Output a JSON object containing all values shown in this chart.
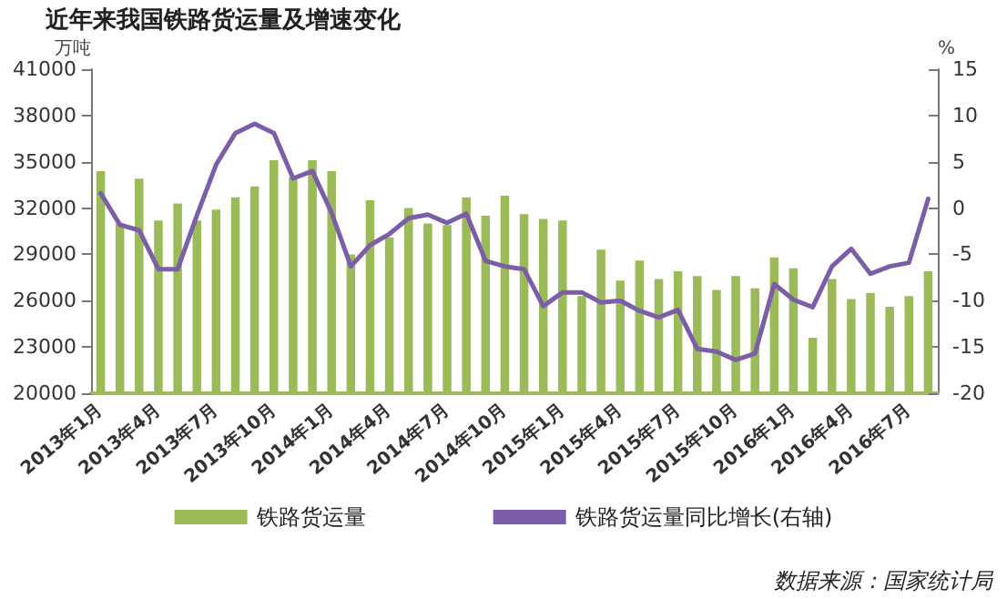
{
  "chart_data": {
    "type": "bar",
    "title": "近年来我国铁路货运量及增速变化",
    "ylabel": "万吨",
    "y2label": "%",
    "categories": [
      "2013年1月",
      null,
      null,
      "2013年4月",
      null,
      null,
      "2013年7月",
      null,
      null,
      "2013年10月",
      null,
      null,
      "2014年1月",
      null,
      null,
      "2014年4月",
      null,
      null,
      "2014年7月",
      null,
      null,
      "2014年10月",
      null,
      null,
      "2015年1月",
      null,
      null,
      "2015年4月",
      null,
      null,
      "2015年7月",
      null,
      null,
      "2015年10月",
      null,
      null,
      "2016年1月",
      null,
      null,
      "2016年4月",
      null,
      null,
      "2016年7月",
      null
    ],
    "series": [
      {
        "name": "铁路货运量",
        "color": "#9bbb59",
        "values": [
          34400,
          31000,
          33900,
          31200,
          32300,
          31200,
          31900,
          32700,
          33400,
          35100,
          34000,
          35100,
          34400,
          29000,
          32500,
          30100,
          32000,
          31000,
          30900,
          32700,
          31500,
          32800,
          31600,
          31300,
          31200,
          26300,
          29300,
          27300,
          28600,
          27400,
          27900,
          27600,
          26700,
          27600,
          26800,
          28800,
          28100,
          23600,
          27400,
          26100,
          26500,
          25600,
          26300,
          27900
        ]
      },
      {
        "name": "铁路货运量同比增长(右轴)",
        "type": "line",
        "axis": "y2",
        "color": "#7b5ea7",
        "values": [
          1.6,
          -1.8,
          -2.4,
          -6.6,
          -6.6,
          -0.8,
          4.7,
          8.1,
          9.1,
          8.1,
          3.2,
          4.0,
          -0.5,
          -6.3,
          -4.0,
          -2.8,
          -1.1,
          -0.7,
          -1.6,
          -0.6,
          -5.7,
          -6.3,
          -6.6,
          -10.6,
          -9.1,
          -9.1,
          -10.2,
          -10.0,
          -11.1,
          -11.8,
          -11.0,
          -15.2,
          -15.5,
          -16.4,
          -15.7,
          -8.2,
          -9.9,
          -10.7,
          -6.3,
          -4.4,
          -7.1,
          -6.3,
          -5.9,
          1.0
        ]
      }
    ],
    "ylim": [
      20000,
      41000
    ],
    "yticks": [
      20000,
      23000,
      26000,
      29000,
      32000,
      35000,
      38000,
      41000
    ],
    "y2lim": [
      -20,
      15
    ],
    "y2ticks": [
      -20,
      -15,
      -10,
      -5,
      0,
      5,
      10,
      15
    ],
    "grid": false,
    "legend": "bottom",
    "marker": "none",
    "annotations": [
      "数据来源：国家统计局"
    ]
  }
}
